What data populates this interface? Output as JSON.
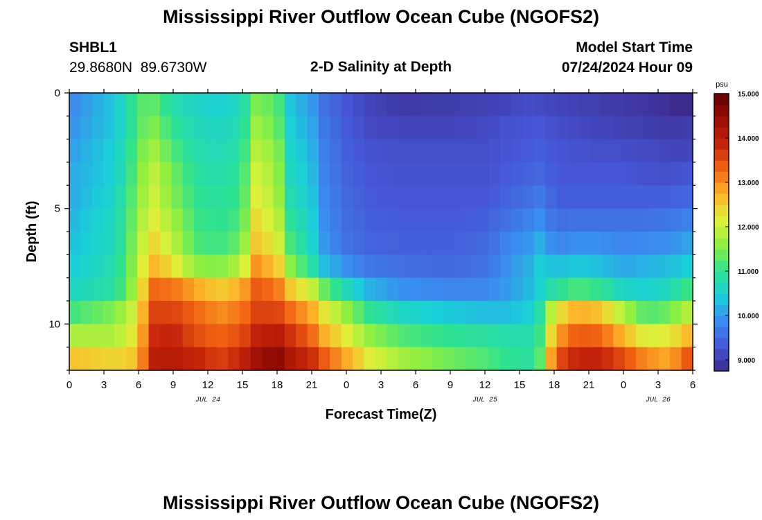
{
  "page": {
    "title": "Mississippi River Outflow Ocean Cube (NGOFS2)",
    "title_repeat": "Mississippi River Outflow Ocean Cube (NGOFS2)"
  },
  "station": {
    "id": "SHBL1",
    "coords": "29.8680N  89.6730W"
  },
  "plot_title": "2-D Salinity at Depth",
  "model_start": {
    "label": "Model Start Time",
    "value": "07/24/2024 Hour 09"
  },
  "chart_data": {
    "type": "heatmap",
    "title": "2-D Salinity at Depth",
    "xlabel": "Forecast Time(Z)",
    "ylabel": "Depth (ft)",
    "x_range_hours": [
      0,
      54
    ],
    "x_ticks": [
      {
        "h": 0,
        "label": "0"
      },
      {
        "h": 3,
        "label": "3"
      },
      {
        "h": 6,
        "label": "6"
      },
      {
        "h": 9,
        "label": "9"
      },
      {
        "h": 12,
        "label": "12"
      },
      {
        "h": 15,
        "label": "15"
      },
      {
        "h": 18,
        "label": "18"
      },
      {
        "h": 21,
        "label": "21"
      },
      {
        "h": 24,
        "label": "0"
      },
      {
        "h": 27,
        "label": "3"
      },
      {
        "h": 30,
        "label": "6"
      },
      {
        "h": 33,
        "label": "9"
      },
      {
        "h": 36,
        "label": "12"
      },
      {
        "h": 39,
        "label": "15"
      },
      {
        "h": 42,
        "label": "18"
      },
      {
        "h": 45,
        "label": "21"
      },
      {
        "h": 48,
        "label": "0"
      },
      {
        "h": 51,
        "label": "3"
      },
      {
        "h": 54,
        "label": "6"
      }
    ],
    "date_labels": [
      {
        "h": 12,
        "label": "JUL 24"
      },
      {
        "h": 36,
        "label": "JUL 25"
      },
      {
        "h": 51,
        "label": "JUL 26"
      }
    ],
    "y_range_ft": [
      0,
      12
    ],
    "y_ticks": [
      {
        "v": 0,
        "label": "0"
      },
      {
        "v": 5,
        "label": "5"
      },
      {
        "v": 10,
        "label": "10"
      }
    ],
    "levels": 12,
    "columns": 55,
    "anchor_hours": [
      0,
      4,
      6,
      7,
      9,
      11,
      13,
      15,
      16,
      18,
      19,
      21,
      22,
      24,
      26,
      29,
      33,
      36,
      38,
      40,
      41,
      42,
      44,
      46,
      48,
      50,
      52,
      54
    ],
    "salinity_anchors": [
      [
        9.8,
        10.4,
        11.2,
        11.4,
        10.8,
        10.6,
        10.5,
        10.7,
        11.5,
        11.3,
        10.4,
        10.0,
        9.6,
        9.3,
        9.1,
        8.95,
        9.0,
        9.05,
        9.1,
        9.2,
        9.15,
        9.1,
        9.05,
        9.0,
        8.95,
        8.9,
        8.8,
        8.6
      ],
      [
        9.9,
        10.4,
        11.2,
        11.6,
        11.0,
        10.7,
        10.6,
        10.8,
        11.7,
        11.4,
        10.5,
        10.1,
        9.7,
        9.35,
        9.15,
        9.1,
        9.1,
        9.15,
        9.25,
        9.3,
        9.3,
        9.2,
        9.15,
        9.1,
        9.05,
        9.0,
        8.95,
        9.0
      ],
      [
        10.0,
        10.5,
        11.3,
        11.8,
        11.2,
        10.8,
        10.7,
        10.9,
        11.9,
        11.6,
        10.6,
        10.2,
        9.75,
        9.4,
        9.25,
        9.2,
        9.2,
        9.2,
        9.3,
        9.35,
        9.4,
        9.3,
        9.25,
        9.2,
        9.2,
        9.15,
        9.1,
        9.1
      ],
      [
        10.1,
        10.5,
        11.4,
        12.0,
        11.4,
        10.9,
        10.8,
        11.0,
        12.1,
        11.7,
        10.7,
        10.3,
        9.8,
        9.45,
        9.3,
        9.25,
        9.25,
        9.25,
        9.35,
        9.45,
        9.5,
        9.35,
        9.3,
        9.3,
        9.3,
        9.25,
        9.2,
        9.3
      ],
      [
        10.1,
        10.6,
        11.5,
        12.1,
        11.5,
        11.0,
        10.9,
        11.1,
        12.2,
        11.8,
        10.8,
        10.4,
        9.85,
        9.5,
        9.35,
        9.3,
        9.3,
        9.3,
        9.45,
        9.6,
        9.7,
        9.4,
        9.4,
        9.4,
        9.4,
        9.4,
        9.4,
        9.5
      ],
      [
        10.2,
        10.7,
        11.6,
        12.3,
        11.7,
        11.1,
        11.0,
        11.2,
        12.4,
        12.0,
        11.0,
        10.5,
        9.9,
        9.55,
        9.4,
        9.35,
        9.35,
        9.4,
        9.6,
        9.8,
        9.9,
        9.55,
        9.6,
        9.6,
        9.6,
        9.6,
        9.65,
        9.8
      ],
      [
        10.3,
        10.7,
        11.7,
        12.5,
        11.9,
        11.2,
        11.1,
        11.4,
        12.6,
        12.2,
        11.2,
        10.6,
        10.0,
        9.6,
        9.45,
        9.4,
        9.4,
        9.5,
        9.8,
        10.0,
        10.2,
        9.8,
        9.9,
        9.9,
        9.8,
        9.85,
        9.9,
        10.1
      ],
      [
        10.4,
        10.8,
        11.8,
        12.8,
        12.3,
        11.6,
        11.5,
        11.9,
        13.0,
        12.6,
        11.6,
        10.9,
        10.3,
        9.9,
        9.65,
        9.55,
        9.5,
        9.6,
        9.9,
        10.2,
        10.5,
        10.3,
        10.4,
        10.3,
        10.1,
        10.2,
        10.3,
        10.5
      ],
      [
        10.6,
        10.9,
        11.9,
        13.3,
        13.2,
        12.8,
        12.5,
        12.8,
        13.4,
        13.2,
        12.6,
        12.0,
        11.4,
        10.7,
        10.2,
        9.9,
        9.8,
        9.8,
        10.0,
        10.3,
        10.6,
        10.9,
        11.2,
        11.0,
        10.6,
        10.5,
        10.7,
        11.2
      ],
      [
        11.1,
        11.5,
        12.2,
        13.6,
        13.6,
        13.3,
        13.0,
        13.2,
        13.6,
        13.6,
        13.3,
        12.8,
        12.3,
        11.6,
        11.0,
        10.6,
        10.4,
        10.3,
        10.3,
        10.5,
        11.0,
        12.2,
        12.8,
        12.6,
        11.8,
        11.2,
        11.4,
        12.0
      ],
      [
        11.8,
        11.8,
        12.4,
        13.8,
        13.9,
        13.5,
        13.3,
        13.5,
        13.9,
        14.1,
        13.8,
        13.3,
        12.8,
        12.2,
        11.6,
        11.2,
        11.0,
        10.9,
        10.8,
        10.8,
        11.2,
        12.8,
        13.4,
        13.3,
        12.7,
        12.1,
        12.2,
        12.8
      ],
      [
        12.6,
        12.4,
        12.6,
        14.0,
        14.1,
        13.9,
        13.6,
        13.9,
        14.3,
        14.6,
        14.2,
        13.8,
        13.4,
        12.8,
        12.2,
        11.7,
        11.4,
        11.2,
        11.0,
        10.9,
        11.4,
        13.4,
        13.9,
        13.9,
        13.5,
        13.0,
        12.8,
        13.6
      ]
    ],
    "colorbar": {
      "unit": "psu",
      "min": 8.75,
      "max": 15.0,
      "ticks": [
        {
          "v": 9.0,
          "label": "9.000"
        },
        {
          "v": 10.0,
          "label": "10.000"
        },
        {
          "v": 11.0,
          "label": "11.000"
        },
        {
          "v": 12.0,
          "label": "12.000"
        },
        {
          "v": 13.0,
          "label": "13.000"
        },
        {
          "v": 14.0,
          "label": "14.000"
        },
        {
          "v": 15.0,
          "label": "15.000"
        }
      ]
    },
    "colors": {
      "stops": [
        "#3c2a8c",
        "#4657d8",
        "#3a8ef0",
        "#1ad0d8",
        "#2fe290",
        "#90ef40",
        "#dff03a",
        "#fdb52a",
        "#f26514",
        "#c6240a",
        "#9a0d04",
        "#5e0000"
      ],
      "missing": "#ffffff",
      "axis": "#000000"
    }
  }
}
